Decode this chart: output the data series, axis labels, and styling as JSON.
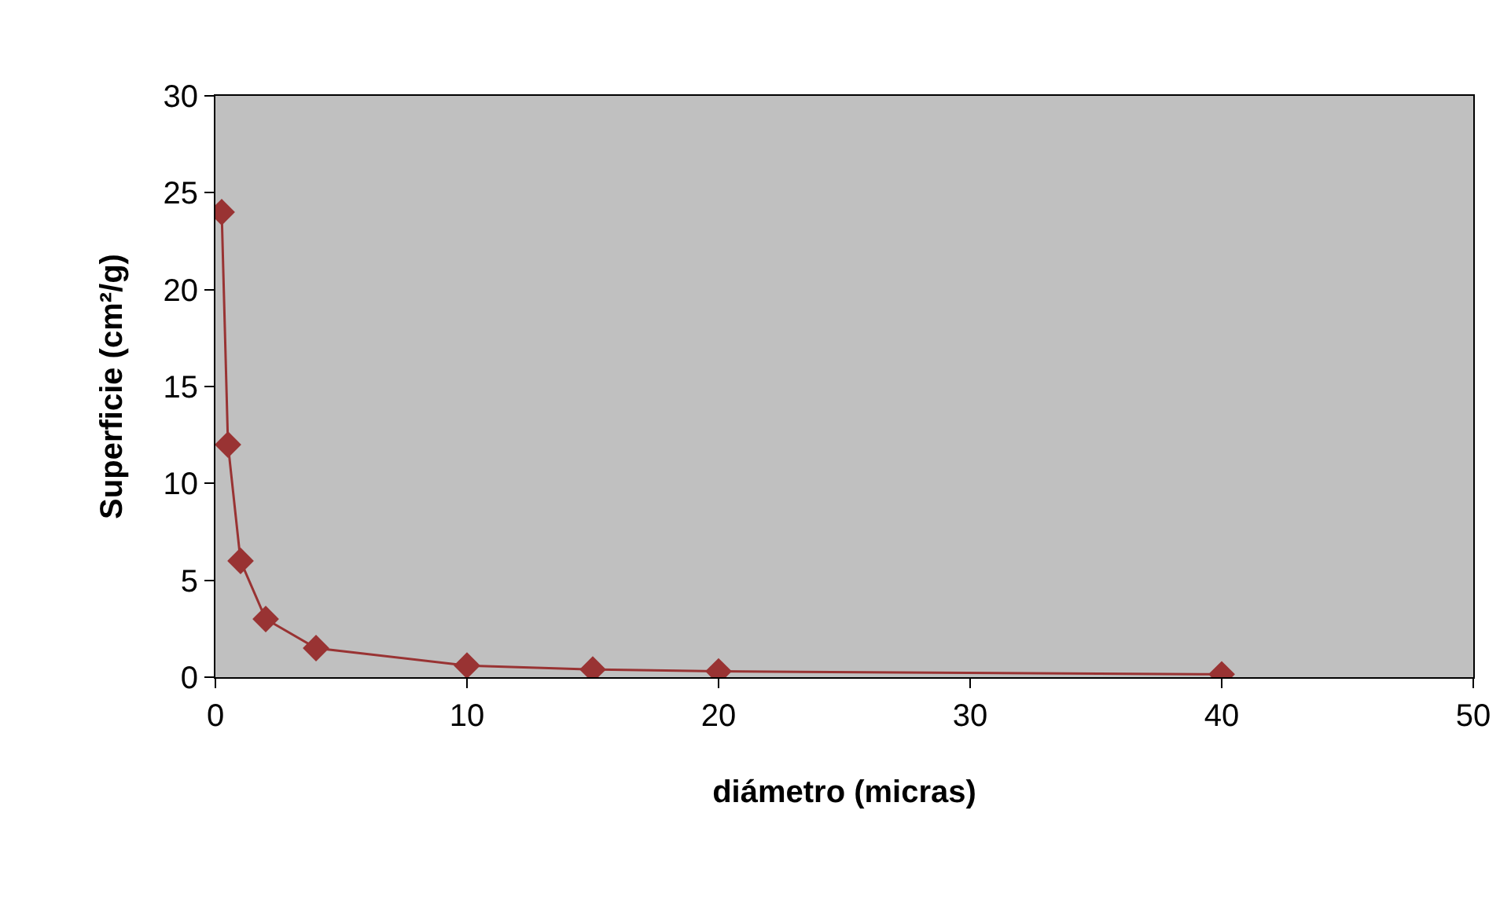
{
  "chart_data": {
    "type": "line",
    "xlabel": "diámetro (micras)",
    "ylabel": "Superficie (cm²/g)",
    "x": [
      0.25,
      0.5,
      1,
      2,
      4,
      10,
      15,
      20,
      40
    ],
    "series": [
      {
        "color": "#993333",
        "values": [
          24,
          12,
          6,
          3,
          1.5,
          0.6,
          0.4,
          0.3,
          0.15
        ]
      }
    ],
    "xlim": [
      0,
      50
    ],
    "xticks": [
      0,
      10,
      20,
      30,
      40,
      50
    ],
    "ylim": [
      0,
      30
    ],
    "yticks": [
      0,
      5,
      10,
      15,
      20,
      25,
      30
    ],
    "grid": false,
    "legend": false,
    "marker": "diamond",
    "line_style": "solid"
  }
}
